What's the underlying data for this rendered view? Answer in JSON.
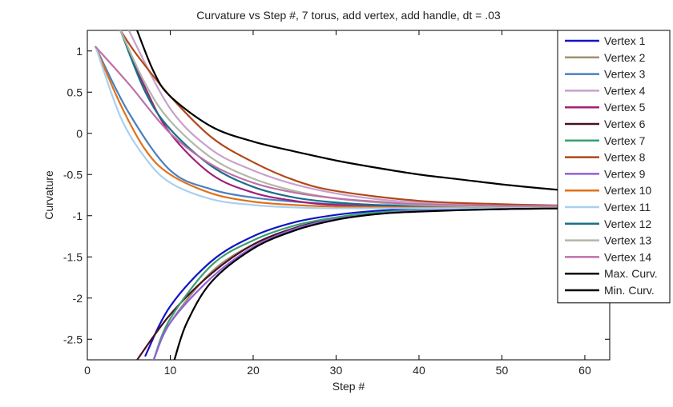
{
  "chart_data": {
    "type": "line",
    "title": "Curvature vs Step #, 7 torus, add vertex, add handle, dt = .03",
    "xlabel": "Step #",
    "ylabel": "Curvature",
    "xlim": [
      0,
      63
    ],
    "ylim": [
      -2.75,
      1.25
    ],
    "xticks": [
      0,
      10,
      20,
      30,
      40,
      50,
      60
    ],
    "yticks": [
      1,
      0.5,
      0,
      -0.5,
      -1,
      -1.5,
      -2,
      -2.5
    ],
    "ytick_labels": [
      "1",
      "0.5",
      "0",
      "-0.5",
      "-1",
      "-1.5",
      "-2",
      "-2.5"
    ],
    "grid": false,
    "legend_position": "top-right",
    "series": [
      {
        "name": "Vertex 1",
        "color": "#1212c8",
        "x": [
          7,
          10,
          15,
          20,
          25,
          30,
          35,
          40,
          50,
          60,
          63
        ],
        "y": [
          -2.7,
          -2.1,
          -1.55,
          -1.25,
          -1.08,
          -0.99,
          -0.94,
          -0.92,
          -0.91,
          -0.9,
          -0.9
        ]
      },
      {
        "name": "Vertex 2",
        "color": "#a09070",
        "x": [
          8,
          10,
          15,
          20,
          25,
          30,
          35,
          40,
          50,
          60,
          63
        ],
        "y": [
          -2.75,
          -2.3,
          -1.68,
          -1.35,
          -1.15,
          -1.03,
          -0.97,
          -0.94,
          -0.92,
          -0.91,
          -0.91
        ]
      },
      {
        "name": "Vertex 3",
        "color": "#4a80c0",
        "x": [
          1,
          5,
          10,
          15,
          20,
          25,
          30,
          40,
          50,
          60,
          63
        ],
        "y": [
          1.05,
          0.25,
          -0.45,
          -0.68,
          -0.78,
          -0.83,
          -0.86,
          -0.89,
          -0.9,
          -0.9,
          -0.9
        ]
      },
      {
        "name": "Vertex 4",
        "color": "#c8a0cc",
        "x": [
          5,
          10,
          15,
          20,
          25,
          30,
          35,
          40,
          50,
          60,
          63
        ],
        "y": [
          1.25,
          0.3,
          -0.2,
          -0.45,
          -0.62,
          -0.73,
          -0.8,
          -0.84,
          -0.88,
          -0.89,
          -0.89
        ]
      },
      {
        "name": "Vertex 5",
        "color": "#a02078",
        "x": [
          4,
          7,
          10,
          15,
          20,
          25,
          30,
          40,
          50,
          60,
          63
        ],
        "y": [
          1.25,
          0.55,
          0.0,
          -0.5,
          -0.72,
          -0.82,
          -0.87,
          -0.9,
          -0.91,
          -0.91,
          -0.91
        ]
      },
      {
        "name": "Vertex 6",
        "color": "#4a1020",
        "x": [
          6,
          10,
          15,
          20,
          25,
          30,
          35,
          40,
          50,
          60,
          63
        ],
        "y": [
          -2.75,
          -2.2,
          -1.7,
          -1.35,
          -1.15,
          -1.03,
          -0.97,
          -0.94,
          -0.92,
          -0.91,
          -0.91
        ]
      },
      {
        "name": "Vertex 7",
        "color": "#3aa070",
        "x": [
          8,
          10,
          15,
          20,
          25,
          30,
          35,
          40,
          50,
          60,
          63
        ],
        "y": [
          -2.75,
          -2.25,
          -1.6,
          -1.3,
          -1.12,
          -1.02,
          -0.96,
          -0.93,
          -0.91,
          -0.9,
          -0.9
        ]
      },
      {
        "name": "Vertex 8",
        "color": "#b04818",
        "x": [
          4,
          6,
          10,
          15,
          20,
          25,
          30,
          40,
          50,
          60,
          63
        ],
        "y": [
          1.25,
          0.95,
          0.45,
          -0.05,
          -0.35,
          -0.57,
          -0.7,
          -0.82,
          -0.86,
          -0.88,
          -0.88
        ]
      },
      {
        "name": "Vertex 9",
        "color": "#9060d8",
        "x": [
          8,
          10,
          15,
          20,
          25,
          30,
          35,
          40,
          50,
          60,
          63
        ],
        "y": [
          -2.75,
          -2.3,
          -1.75,
          -1.38,
          -1.16,
          -1.04,
          -0.98,
          -0.94,
          -0.92,
          -0.91,
          -0.91
        ]
      },
      {
        "name": "Vertex 10",
        "color": "#e07018",
        "x": [
          1,
          4,
          7,
          10,
          15,
          20,
          25,
          30,
          40,
          50,
          63
        ],
        "y": [
          1.05,
          0.35,
          -0.2,
          -0.5,
          -0.73,
          -0.83,
          -0.87,
          -0.89,
          -0.9,
          -0.9,
          -0.9
        ]
      },
      {
        "name": "Vertex 11",
        "color": "#a8d0f0",
        "x": [
          1,
          4,
          7,
          10,
          15,
          20,
          25,
          30,
          40,
          50,
          63
        ],
        "y": [
          1.05,
          0.2,
          -0.3,
          -0.6,
          -0.8,
          -0.87,
          -0.9,
          -0.91,
          -0.91,
          -0.91,
          -0.91
        ]
      },
      {
        "name": "Vertex 12",
        "color": "#187088",
        "x": [
          4,
          7,
          10,
          15,
          20,
          25,
          30,
          35,
          40,
          50,
          63
        ],
        "y": [
          1.25,
          0.5,
          0.05,
          -0.4,
          -0.65,
          -0.78,
          -0.84,
          -0.87,
          -0.88,
          -0.89,
          -0.89
        ]
      },
      {
        "name": "Vertex 13",
        "color": "#b0b8a8",
        "x": [
          4,
          7,
          10,
          15,
          20,
          25,
          30,
          35,
          40,
          50,
          63
        ],
        "y": [
          1.25,
          0.6,
          0.15,
          -0.3,
          -0.55,
          -0.7,
          -0.79,
          -0.84,
          -0.87,
          -0.89,
          -0.89
        ]
      },
      {
        "name": "Vertex 14",
        "color": "#c070a8",
        "x": [
          1,
          5,
          10,
          15,
          20,
          25,
          30,
          35,
          40,
          50,
          63
        ],
        "y": [
          1.05,
          0.6,
          0.0,
          -0.38,
          -0.6,
          -0.72,
          -0.79,
          -0.83,
          -0.86,
          -0.88,
          -0.88
        ]
      },
      {
        "name": "Max. Curv.",
        "color": "#000000",
        "x": [
          6,
          8,
          10,
          15,
          20,
          25,
          30,
          35,
          40,
          45,
          50,
          55,
          60,
          63
        ],
        "y": [
          1.25,
          0.75,
          0.45,
          0.08,
          -0.1,
          -0.22,
          -0.33,
          -0.42,
          -0.5,
          -0.56,
          -0.62,
          -0.67,
          -0.71,
          -0.73
        ]
      },
      {
        "name": "Min. Curv.",
        "color": "#000000",
        "x": [
          10.5,
          12,
          15,
          20,
          25,
          30,
          35,
          40,
          50,
          60,
          63
        ],
        "y": [
          -2.75,
          -2.3,
          -1.8,
          -1.4,
          -1.18,
          -1.05,
          -0.98,
          -0.95,
          -0.92,
          -0.91,
          -0.91
        ]
      }
    ]
  }
}
